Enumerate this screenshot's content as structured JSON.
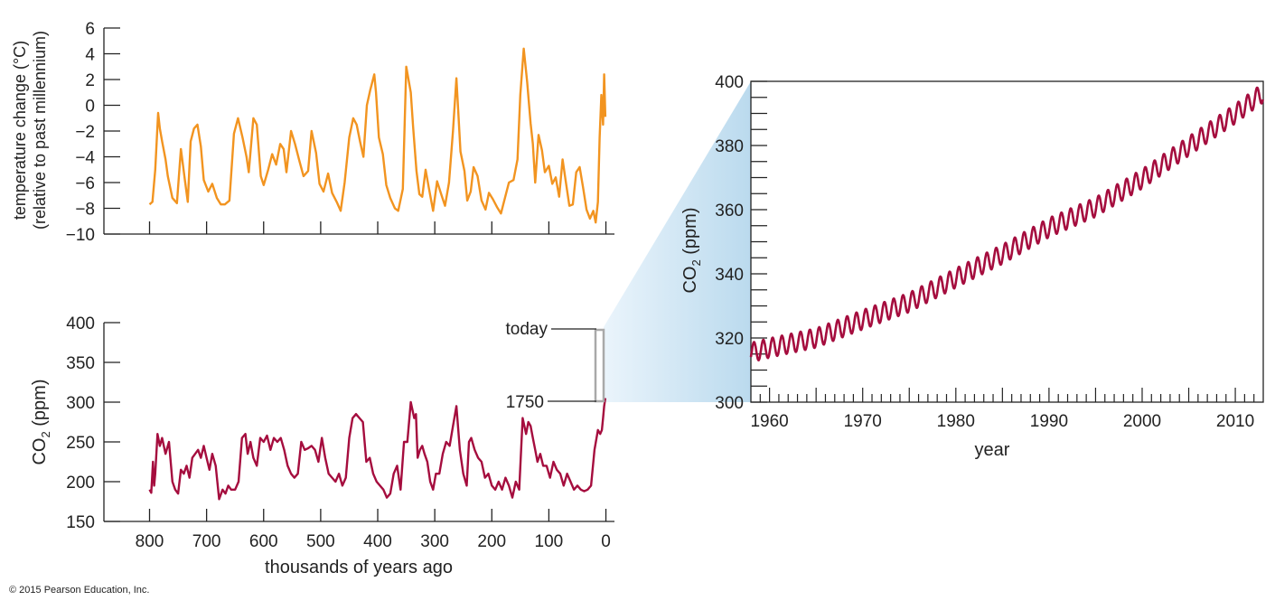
{
  "colors": {
    "temperature": "#f29420",
    "co2": "#a50d3e",
    "axis": "#222222",
    "zoom_gradient_start": "#e8f3fb",
    "zoom_gradient_end": "#b3d6ec"
  },
  "credit": "© 2015 Pearson Education, Inc.",
  "chart_data": [
    {
      "id": "temperature",
      "type": "line",
      "title": "",
      "xlabel": "",
      "ylabel": [
        "temperature change (°C)",
        "(relative to past millennium)"
      ],
      "x_unit": "thousands of years ago",
      "xlim": [
        880,
        -15
      ],
      "ylim": [
        -10,
        6
      ],
      "x_ticks": [
        800,
        700,
        600,
        500,
        400,
        300,
        200,
        100,
        0
      ],
      "y_ticks": [
        6,
        4,
        2,
        0,
        -2,
        -4,
        -6,
        -8,
        -10
      ],
      "y_tick_labels": [
        "6",
        "4",
        "2",
        "0",
        "−2",
        "−4",
        "−6",
        "−8",
        "−10"
      ],
      "grid": false,
      "series": [
        {
          "x": [
            800,
            795,
            790,
            785,
            782,
            778,
            772,
            768,
            760,
            752,
            745,
            738,
            733,
            728,
            722,
            716,
            710,
            705,
            697,
            690,
            682,
            675,
            668,
            660,
            652,
            645,
            637,
            630,
            626,
            618,
            612,
            605,
            600,
            592,
            585,
            578,
            571,
            565,
            560,
            552,
            545,
            538,
            530,
            522,
            516,
            508,
            502,
            495,
            487,
            480,
            472,
            465,
            458,
            450,
            443,
            437,
            431,
            425,
            419,
            413,
            406,
            403,
            398,
            391,
            385,
            378,
            370,
            364,
            356,
            350,
            342,
            338,
            332,
            327,
            322,
            316,
            310,
            303,
            296,
            288,
            282,
            275,
            268,
            262,
            255,
            248,
            243,
            237,
            232,
            225,
            218,
            211,
            205,
            198,
            191,
            184,
            177,
            170,
            162,
            155,
            150,
            144,
            138,
            132,
            128,
            124,
            118,
            112,
            107,
            100,
            94,
            88,
            82,
            76,
            70,
            64,
            58,
            52,
            46,
            40,
            34,
            28,
            22,
            18,
            14,
            11,
            8,
            5,
            3,
            1
          ],
          "y": [
            -7.7,
            -7.5,
            -5.0,
            -0.6,
            -1.8,
            -2.8,
            -4.2,
            -5.5,
            -7.2,
            -7.6,
            -3.4,
            -5.8,
            -7.5,
            -2.8,
            -1.8,
            -1.5,
            -3.2,
            -5.8,
            -6.7,
            -6.1,
            -7.2,
            -7.7,
            -7.7,
            -7.4,
            -2.2,
            -1.0,
            -2.5,
            -4.0,
            -5.2,
            -1.0,
            -1.5,
            -5.5,
            -6.2,
            -5.0,
            -3.8,
            -4.6,
            -3.0,
            -3.4,
            -5.2,
            -2.0,
            -3.0,
            -4.2,
            -5.5,
            -5.1,
            -2.0,
            -3.7,
            -6.1,
            -6.7,
            -5.3,
            -6.8,
            -7.5,
            -8.2,
            -6.0,
            -2.5,
            -1.0,
            -1.5,
            -2.8,
            -4.0,
            0.0,
            1.2,
            2.4,
            1.0,
            -2.5,
            -3.8,
            -6.2,
            -7.2,
            -8.0,
            -8.2,
            -6.5,
            3.0,
            1.0,
            -1.7,
            -5.1,
            -6.9,
            -7.1,
            -5.0,
            -6.5,
            -8.2,
            -5.9,
            -7.0,
            -7.8,
            -6.0,
            -2.0,
            2.1,
            -3.6,
            -5.1,
            -7.4,
            -6.7,
            -4.8,
            -5.5,
            -7.4,
            -8.1,
            -6.8,
            -7.3,
            -7.9,
            -8.4,
            -7.2,
            -6.0,
            -5.8,
            -4.2,
            0.8,
            4.4,
            1.8,
            -1.4,
            -3.0,
            -6.0,
            -2.3,
            -3.5,
            -5.2,
            -4.7,
            -6.1,
            -5.6,
            -7.1,
            -4.2,
            -6.0,
            -7.8,
            -7.7,
            -5.2,
            -4.8,
            -6.4,
            -8.1,
            -8.8,
            -8.2,
            -9.1,
            -7.5,
            -2.5,
            0.8,
            -1.5,
            2.4,
            -0.9
          ]
        }
      ]
    },
    {
      "id": "co2_longterm",
      "type": "line",
      "title": "",
      "xlabel": "thousands of years ago",
      "ylabel": "CO2 (ppm)",
      "xlim": [
        880,
        -15
      ],
      "ylim": [
        150,
        400
      ],
      "x_ticks": [
        800,
        700,
        600,
        500,
        400,
        300,
        200,
        100,
        0
      ],
      "y_ticks": [
        150,
        200,
        250,
        300,
        350,
        400
      ],
      "grid": false,
      "series": [
        {
          "x": [
            800,
            797,
            794,
            792,
            790,
            786,
            782,
            778,
            772,
            766,
            760,
            755,
            750,
            745,
            740,
            735,
            730,
            725,
            720,
            715,
            710,
            705,
            700,
            695,
            690,
            684,
            678,
            672,
            667,
            662,
            657,
            650,
            644,
            638,
            632,
            628,
            623,
            618,
            612,
            606,
            600,
            594,
            588,
            582,
            576,
            570,
            564,
            558,
            552,
            546,
            540,
            534,
            528,
            522,
            516,
            510,
            504,
            498,
            492,
            486,
            480,
            474,
            468,
            462,
            456,
            450,
            444,
            438,
            432,
            426,
            420,
            414,
            408,
            402,
            396,
            390,
            384,
            378,
            372,
            366,
            360,
            354,
            348,
            342,
            336,
            333,
            330,
            326,
            322,
            318,
            313,
            308,
            303,
            298,
            292,
            286,
            280,
            274,
            268,
            262,
            256,
            250,
            244,
            240,
            236,
            230,
            224,
            218,
            212,
            206,
            200,
            194,
            188,
            182,
            176,
            170,
            164,
            158,
            152,
            146,
            140,
            136,
            132,
            128,
            124,
            120,
            115,
            110,
            104,
            98,
            92,
            86,
            80,
            74,
            68,
            62,
            56,
            50,
            44,
            38,
            32,
            26,
            20,
            14,
            10,
            7,
            5,
            3,
            1
          ],
          "y": [
            190,
            186,
            225,
            195,
            210,
            260,
            245,
            255,
            235,
            250,
            200,
            190,
            185,
            215,
            210,
            220,
            205,
            230,
            235,
            240,
            230,
            245,
            230,
            215,
            235,
            220,
            178,
            190,
            185,
            195,
            190,
            190,
            200,
            255,
            260,
            235,
            250,
            230,
            220,
            255,
            250,
            258,
            240,
            255,
            250,
            255,
            240,
            220,
            210,
            205,
            210,
            250,
            240,
            242,
            245,
            240,
            225,
            255,
            230,
            210,
            205,
            200,
            210,
            195,
            205,
            255,
            280,
            285,
            280,
            275,
            225,
            230,
            210,
            200,
            195,
            190,
            180,
            185,
            210,
            220,
            190,
            250,
            250,
            300,
            280,
            285,
            230,
            240,
            245,
            235,
            225,
            200,
            190,
            210,
            210,
            235,
            250,
            245,
            270,
            295,
            240,
            210,
            195,
            250,
            255,
            240,
            230,
            225,
            205,
            210,
            195,
            190,
            200,
            190,
            205,
            195,
            180,
            200,
            190,
            280,
            260,
            275,
            270,
            255,
            240,
            225,
            235,
            220,
            220,
            205,
            225,
            215,
            210,
            195,
            210,
            200,
            190,
            195,
            190,
            188,
            190,
            195,
            240,
            265,
            260,
            265,
            280,
            295,
            305
          ]
        }
      ],
      "annotations": [
        {
          "label": "today",
          "y": 390
        },
        {
          "label": "1750",
          "y": 300
        }
      ]
    },
    {
      "id": "co2_recent",
      "type": "line",
      "title": "",
      "xlabel": "year",
      "ylabel": "CO2 (ppm)",
      "xlim": [
        1958,
        2013
      ],
      "ylim": [
        300,
        400
      ],
      "x_ticks": [
        1960,
        1970,
        1980,
        1990,
        2000,
        2010
      ],
      "y_ticks": [
        300,
        320,
        340,
        360,
        380,
        400
      ],
      "grid": false,
      "seasonal_amplitude_ppm": 3,
      "series": [
        {
          "x": [
            1958,
            1960,
            1965,
            1970,
            1975,
            1980,
            1985,
            1990,
            1995,
            2000,
            2005,
            2010,
            2013
          ],
          "y": [
            315.5,
            316.9,
            320.0,
            325.7,
            331.1,
            338.7,
            346.1,
            354.4,
            360.8,
            369.6,
            379.8,
            389.9,
            396.5
          ]
        }
      ]
    }
  ]
}
